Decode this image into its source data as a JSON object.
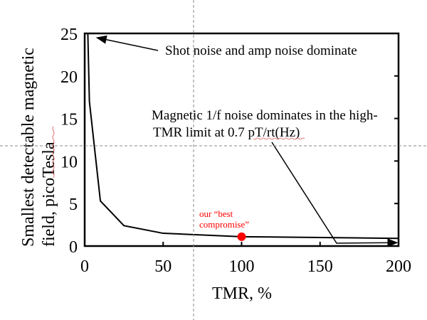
{
  "chart_data": {
    "type": "line",
    "xlabel": "TMR, %",
    "ylabel_lines": [
      "Smallest detectable magnetic",
      "field, picoTesla"
    ],
    "xlim": [
      0,
      200
    ],
    "ylim": [
      0,
      25
    ],
    "xticks": [
      0,
      50,
      100,
      150,
      200
    ],
    "yticks": [
      0,
      5,
      10,
      15,
      20,
      25
    ],
    "grid": false,
    "series": [
      {
        "x": [
          2,
          3,
          10,
          25,
          50,
          100,
          200
        ],
        "y": [
          25,
          17,
          5.3,
          2.4,
          1.5,
          1.1,
          0.9
        ],
        "color": "#000000"
      }
    ],
    "highlight": {
      "x": 100,
      "y": 1.1,
      "color": "#ff0000",
      "label_lines": [
        "our “best",
        "compromise”"
      ]
    },
    "annotations": [
      {
        "text_lines": [
          "Shot noise and amp noise dominate"
        ],
        "arrow_to": [
          6,
          25
        ]
      },
      {
        "text_lines": [
          "Magnetic 1/f noise dominates in the high-",
          "TMR limit at 0.7 pT/rt(Hz)"
        ],
        "arrow_to": [
          200,
          0.4
        ]
      }
    ]
  }
}
